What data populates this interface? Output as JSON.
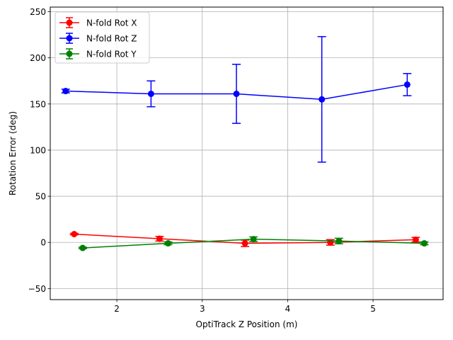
{
  "chart_data": {
    "type": "line",
    "xlabel": "OptiTrack Z Position (m)",
    "ylabel": "Rotation Error (deg)",
    "xlim": [
      1.22,
      5.82
    ],
    "ylim": [
      -62,
      255
    ],
    "xticks": [
      2,
      3,
      4,
      5
    ],
    "yticks": [
      -50,
      0,
      50,
      100,
      150,
      200,
      250
    ],
    "grid": true,
    "legend_position": "top-left",
    "series": [
      {
        "name": "N-fold Rot X",
        "color": "#ff0000",
        "x": [
          1.5,
          2.5,
          3.5,
          4.5,
          5.5
        ],
        "y": [
          9,
          4,
          -1,
          0,
          3
        ],
        "yerr": [
          0.8,
          2.5,
          3.5,
          3,
          2.5
        ]
      },
      {
        "name": "N-fold Rot Z",
        "color": "#0000ff",
        "x": [
          1.4,
          2.4,
          3.4,
          4.4,
          5.4
        ],
        "y": [
          164,
          161,
          161,
          155,
          171
        ],
        "yerr": [
          2,
          14,
          32,
          68,
          12
        ]
      },
      {
        "name": "N-fold Rot Y",
        "color": "#008000",
        "x": [
          1.6,
          2.6,
          3.6,
          4.6,
          5.6
        ],
        "y": [
          -6,
          -1,
          3.5,
          1.5,
          -1
        ],
        "yerr": [
          0.8,
          1.5,
          2.5,
          3,
          1.5
        ]
      }
    ]
  }
}
